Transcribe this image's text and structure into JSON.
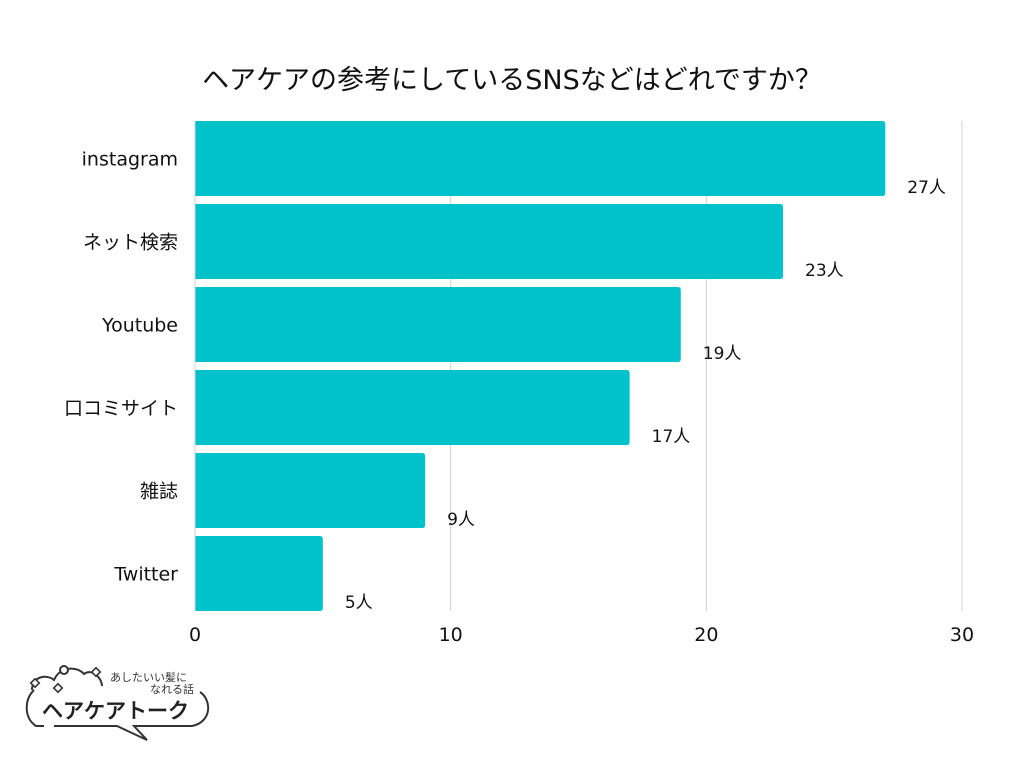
{
  "chart_data": {
    "type": "bar",
    "orientation": "horizontal",
    "title": "ヘアケアの参考にしているSNSなどはどれですか？",
    "categories": [
      "instagram",
      "ネット検索",
      "Youtube",
      "口コミサイト",
      "雑誌",
      "Twitter"
    ],
    "values": [
      27,
      23,
      19,
      17,
      9,
      5
    ],
    "data_labels": [
      "27人",
      "23人",
      "19人",
      "17人",
      "9人",
      "5人"
    ],
    "xlim": [
      0,
      30
    ],
    "xticks": [
      "0",
      "10",
      "20",
      "30"
    ],
    "grid": true,
    "bar_color": "#00C2CB",
    "grid_color": "#D0D0D0"
  },
  "logo": {
    "tagline_line1": "あしたいい髪に",
    "tagline_line2": "なれる話",
    "name": "ヘアケアトーク"
  }
}
